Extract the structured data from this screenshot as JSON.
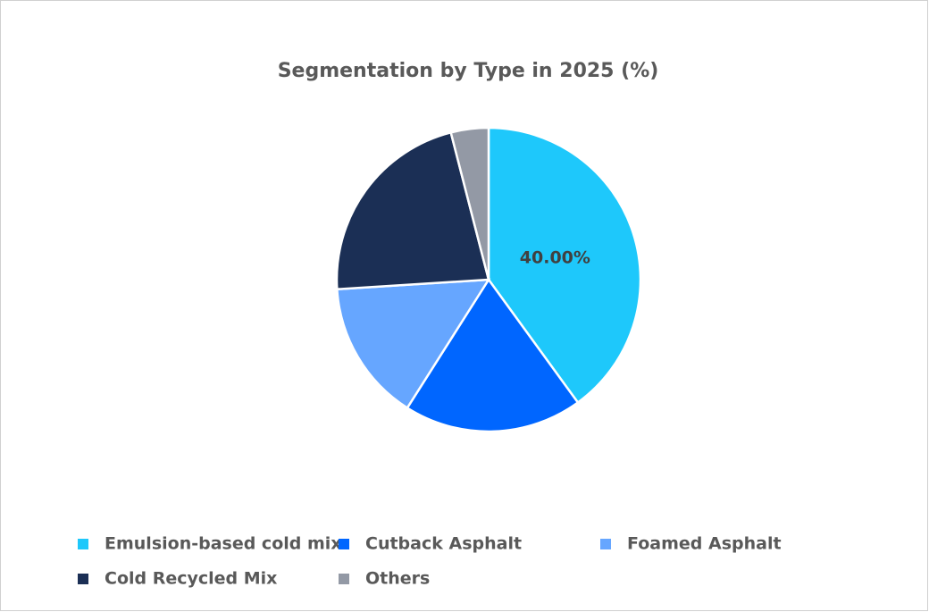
{
  "chart_data": {
    "type": "pie",
    "title": "Segmentation by Type in 2025 (%)",
    "categories": [
      "Emulsion-based cold mix",
      "Cutback Asphalt",
      "Foamed Asphalt",
      "Cold Recycled Mix",
      "Others"
    ],
    "values": [
      40,
      19,
      15,
      22,
      4
    ],
    "value_labels": [
      "40.00%",
      null,
      null,
      null,
      null
    ],
    "colors": [
      "#1ec8fb",
      "#0066ff",
      "#66a6ff",
      "#1b2f55",
      "#9399a5"
    ]
  }
}
